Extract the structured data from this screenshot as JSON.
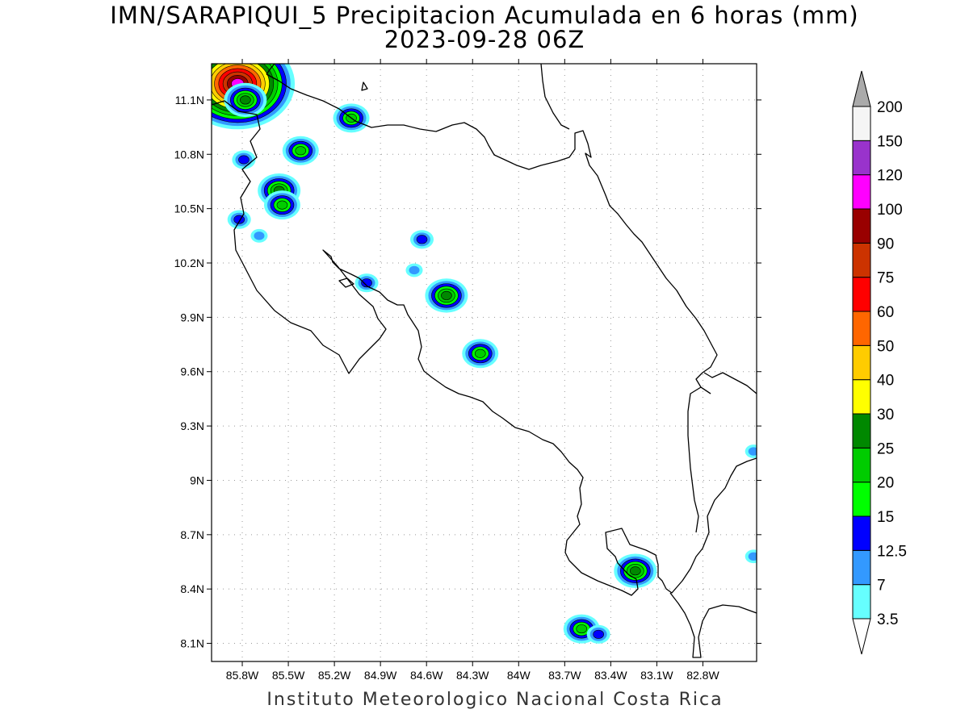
{
  "title": "IMN/SARAPIQUI_5 Precipitacion Acumulada en 6 horas (mm)",
  "subtitle": "2023-09-28 06Z",
  "footer": "Instituto Meteorologico Nacional Costa Rica",
  "map": {
    "lon_range": [
      -86.0,
      -82.45
    ],
    "lat_range": [
      8.0,
      11.3
    ],
    "lat_ticks": [
      {
        "value": 11.1,
        "label": "11.1N"
      },
      {
        "value": 10.8,
        "label": "10.8N"
      },
      {
        "value": 10.5,
        "label": "10.5N"
      },
      {
        "value": 10.2,
        "label": "10.2N"
      },
      {
        "value": 9.9,
        "label": "9.9N"
      },
      {
        "value": 9.6,
        "label": "9.6N"
      },
      {
        "value": 9.3,
        "label": "9.3N"
      },
      {
        "value": 9.0,
        "label": "9N"
      },
      {
        "value": 8.7,
        "label": "8.7N"
      },
      {
        "value": 8.4,
        "label": "8.4N"
      },
      {
        "value": 8.1,
        "label": "8.1N"
      }
    ],
    "lon_ticks": [
      {
        "value": -85.8,
        "label": "85.8W"
      },
      {
        "value": -85.5,
        "label": "85.5W"
      },
      {
        "value": -85.2,
        "label": "85.2W"
      },
      {
        "value": -84.9,
        "label": "84.9W"
      },
      {
        "value": -84.6,
        "label": "84.6W"
      },
      {
        "value": -84.3,
        "label": "84.3W"
      },
      {
        "value": -84.0,
        "label": "84W"
      },
      {
        "value": -83.7,
        "label": "83.7W"
      },
      {
        "value": -83.4,
        "label": "83.4W"
      },
      {
        "value": -83.1,
        "label": "83.1W"
      },
      {
        "value": -82.8,
        "label": "82.8W"
      }
    ],
    "grid": "dotted"
  },
  "colorbar": {
    "levels": [
      "3.5",
      "7",
      "12.5",
      "15",
      "20",
      "25",
      "30",
      "40",
      "50",
      "60",
      "75",
      "90",
      "100",
      "120",
      "150",
      "200"
    ],
    "colors": [
      "#66ffff",
      "#3399ff",
      "#0000ff",
      "#00ff00",
      "#00cc00",
      "#008800",
      "#ffff00",
      "#ffcc00",
      "#ff6600",
      "#ff0000",
      "#cc3300",
      "#990000",
      "#ff00ff",
      "#9933cc",
      "#f5f5f5",
      "#aaaaaa"
    ],
    "under_color": "#ffffff",
    "over_color": "#aaaaaa"
  },
  "precip_cells": [
    {
      "lon": -85.83,
      "lat": 11.19,
      "value": 100
    },
    {
      "lon": -85.78,
      "lat": 11.1,
      "value": 25
    },
    {
      "lon": -85.09,
      "lat": 11.0,
      "value": 20
    },
    {
      "lon": -85.42,
      "lat": 10.82,
      "value": 20
    },
    {
      "lon": -85.79,
      "lat": 10.77,
      "value": 12.5
    },
    {
      "lon": -85.56,
      "lat": 10.6,
      "value": 25
    },
    {
      "lon": -85.54,
      "lat": 10.52,
      "value": 20
    },
    {
      "lon": -85.82,
      "lat": 10.44,
      "value": 12.5
    },
    {
      "lon": -85.69,
      "lat": 10.35,
      "value": 7
    },
    {
      "lon": -84.63,
      "lat": 10.33,
      "value": 12.5
    },
    {
      "lon": -84.68,
      "lat": 10.16,
      "value": 7
    },
    {
      "lon": -84.99,
      "lat": 10.09,
      "value": 12.5
    },
    {
      "lon": -84.47,
      "lat": 10.02,
      "value": 25
    },
    {
      "lon": -84.25,
      "lat": 9.7,
      "value": 20
    },
    {
      "lon": -83.24,
      "lat": 8.5,
      "value": 25
    },
    {
      "lon": -83.59,
      "lat": 8.18,
      "value": 20
    },
    {
      "lon": -83.48,
      "lat": 8.15,
      "value": 12.5
    },
    {
      "lon": -82.47,
      "lat": 8.58,
      "value": 7
    },
    {
      "lon": -82.47,
      "lat": 9.16,
      "value": 7
    }
  ]
}
